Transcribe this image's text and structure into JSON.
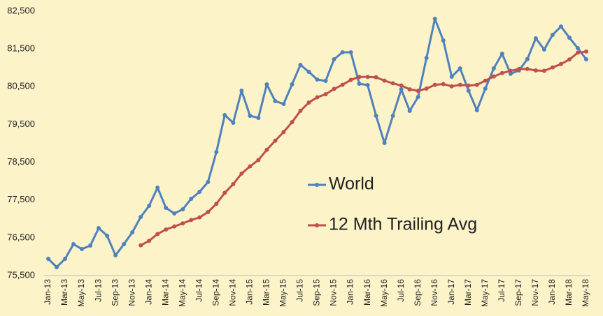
{
  "chart_data": {
    "type": "line",
    "categories": [
      "Jan-13",
      null,
      "Mar-13",
      null,
      "May-13",
      null,
      "Jul-13",
      null,
      "Sep-13",
      null,
      "Nov-13",
      null,
      "Jan-14",
      null,
      "Mar-14",
      null,
      "May-14",
      null,
      "Jul-14",
      null,
      "Sep-14",
      null,
      "Nov-14",
      null,
      "Jan-15",
      null,
      "Mar-15",
      null,
      "May-15",
      null,
      "Jul-15",
      null,
      "Sep-15",
      null,
      "Nov-15",
      null,
      "Jan-16",
      null,
      "Mar-16",
      null,
      "May-16",
      null,
      "Jul-16",
      null,
      "Sep-16",
      null,
      "Nov-16",
      null,
      "Jan-17",
      null,
      "Mar-17",
      null,
      "May-17",
      null,
      "Jul-17",
      null,
      "Sep-17",
      null,
      "Nov-17",
      null,
      "Jan-18",
      null,
      "Mar-18",
      null,
      "May-18"
    ],
    "series": [
      {
        "name": "World",
        "color": "#4f81bd",
        "values": [
          75943,
          75722,
          75943,
          76331,
          76201,
          76293,
          76756,
          76553,
          76035,
          76331,
          76645,
          77051,
          77347,
          77827,
          77291,
          77144,
          77254,
          77532,
          77716,
          77975,
          78769,
          79748,
          79545,
          80394,
          79730,
          79674,
          80561,
          80117,
          80044,
          80561,
          81078,
          80893,
          80690,
          80653,
          81226,
          81410,
          81410,
          80579,
          80542,
          79730,
          79009,
          79730,
          80431,
          79859,
          80228,
          81263,
          82297,
          81724,
          80764,
          80985,
          80394,
          79877,
          80450,
          80985,
          81373,
          80840,
          80930,
          81230,
          81780,
          81484,
          81872,
          82094,
          81798,
          81521,
          81226
        ]
      },
      {
        "name": "12 Mth Trailing Avg",
        "color": "#c0504d",
        "values": [
          null,
          null,
          null,
          null,
          null,
          null,
          null,
          null,
          null,
          null,
          null,
          76300,
          76420,
          76600,
          76720,
          76800,
          76880,
          76970,
          77040,
          77180,
          77400,
          77690,
          77920,
          78200,
          78390,
          78560,
          78830,
          79070,
          79300,
          79560,
          79860,
          80080,
          80220,
          80300,
          80440,
          80550,
          80680,
          80760,
          80760,
          80750,
          80660,
          80590,
          80530,
          80430,
          80390,
          80450,
          80550,
          80570,
          80510,
          80550,
          80530,
          80550,
          80660,
          80770,
          80860,
          80920,
          80970,
          80970,
          80930,
          80920,
          81010,
          81100,
          81220,
          81400,
          81430
        ]
      }
    ],
    "ylim": [
      75500,
      82500
    ],
    "yticks": [
      {
        "value": 75500,
        "label": "75,500"
      },
      {
        "value": 76500,
        "label": "76,500"
      },
      {
        "value": 77500,
        "label": "77,500"
      },
      {
        "value": 78500,
        "label": "78,500"
      },
      {
        "value": 79500,
        "label": "79,500"
      },
      {
        "value": 80500,
        "label": "80,500"
      },
      {
        "value": 81500,
        "label": "81,500"
      },
      {
        "value": 82500,
        "label": "82,500"
      }
    ],
    "grid": false
  }
}
